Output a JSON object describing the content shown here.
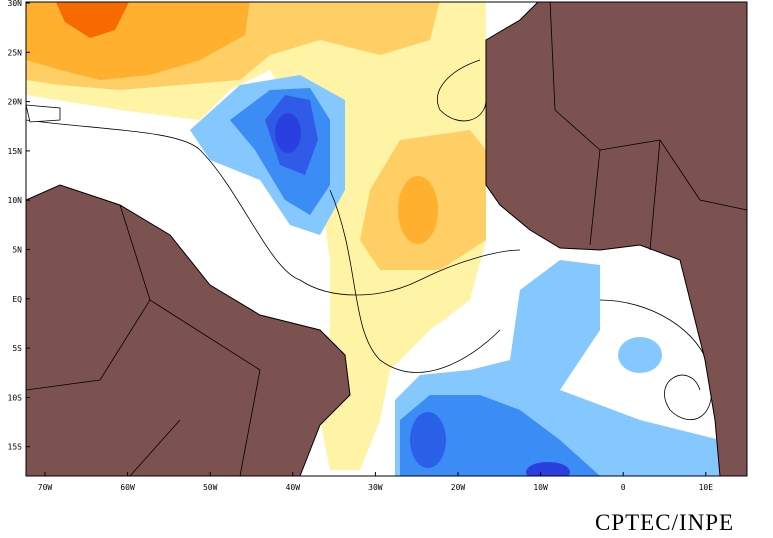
{
  "map": {
    "lat_labels": [
      "30N",
      "25N",
      "20N",
      "15N",
      "10N",
      "5N",
      "EQ",
      "5S",
      "10S",
      "15S"
    ],
    "lon_labels": [
      "70W",
      "60W",
      "50W",
      "40W",
      "30W",
      "20W",
      "10W",
      "0",
      "10E"
    ],
    "credit": "CPTEC/INPE"
  }
}
